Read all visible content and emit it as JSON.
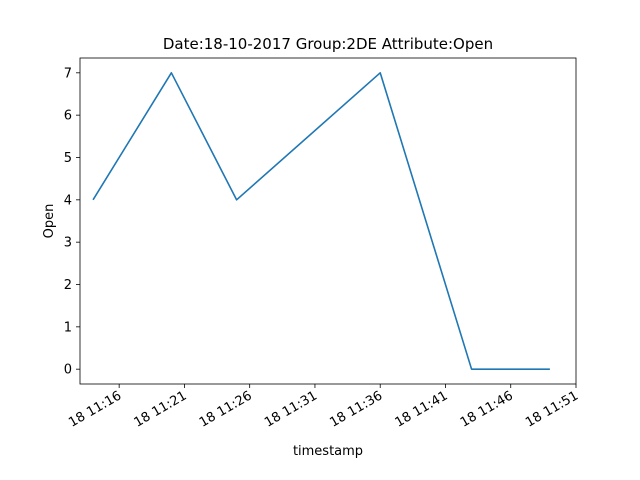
{
  "chart_data": {
    "type": "line",
    "title": "Date:18-10-2017  Group:2DE Attribute:Open",
    "xlabel": "timestamp",
    "ylabel": "Open",
    "x": [
      "11:14",
      "11:20",
      "11:25",
      "11:36",
      "11:43",
      "11:49"
    ],
    "series": [
      {
        "values": [
          4,
          7,
          4,
          7,
          0,
          0
        ],
        "color": "#1f77b4"
      }
    ],
    "x_ticks": [
      {
        "time": "11:16",
        "label": "18 11:16"
      },
      {
        "time": "11:21",
        "label": "18 11:21"
      },
      {
        "time": "11:26",
        "label": "18 11:26"
      },
      {
        "time": "11:31",
        "label": "18 11:31"
      },
      {
        "time": "11:36",
        "label": "18 11:36"
      },
      {
        "time": "11:41",
        "label": "18 11:41"
      },
      {
        "time": "11:46",
        "label": "18 11:46"
      },
      {
        "time": "11:51",
        "label": "18 11:51"
      }
    ],
    "y_ticks": [
      0,
      1,
      2,
      3,
      4,
      5,
      6,
      7
    ],
    "xlim": [
      "11:13",
      "11:51"
    ],
    "ylim": [
      -0.35,
      7.35
    ],
    "grid": false
  }
}
